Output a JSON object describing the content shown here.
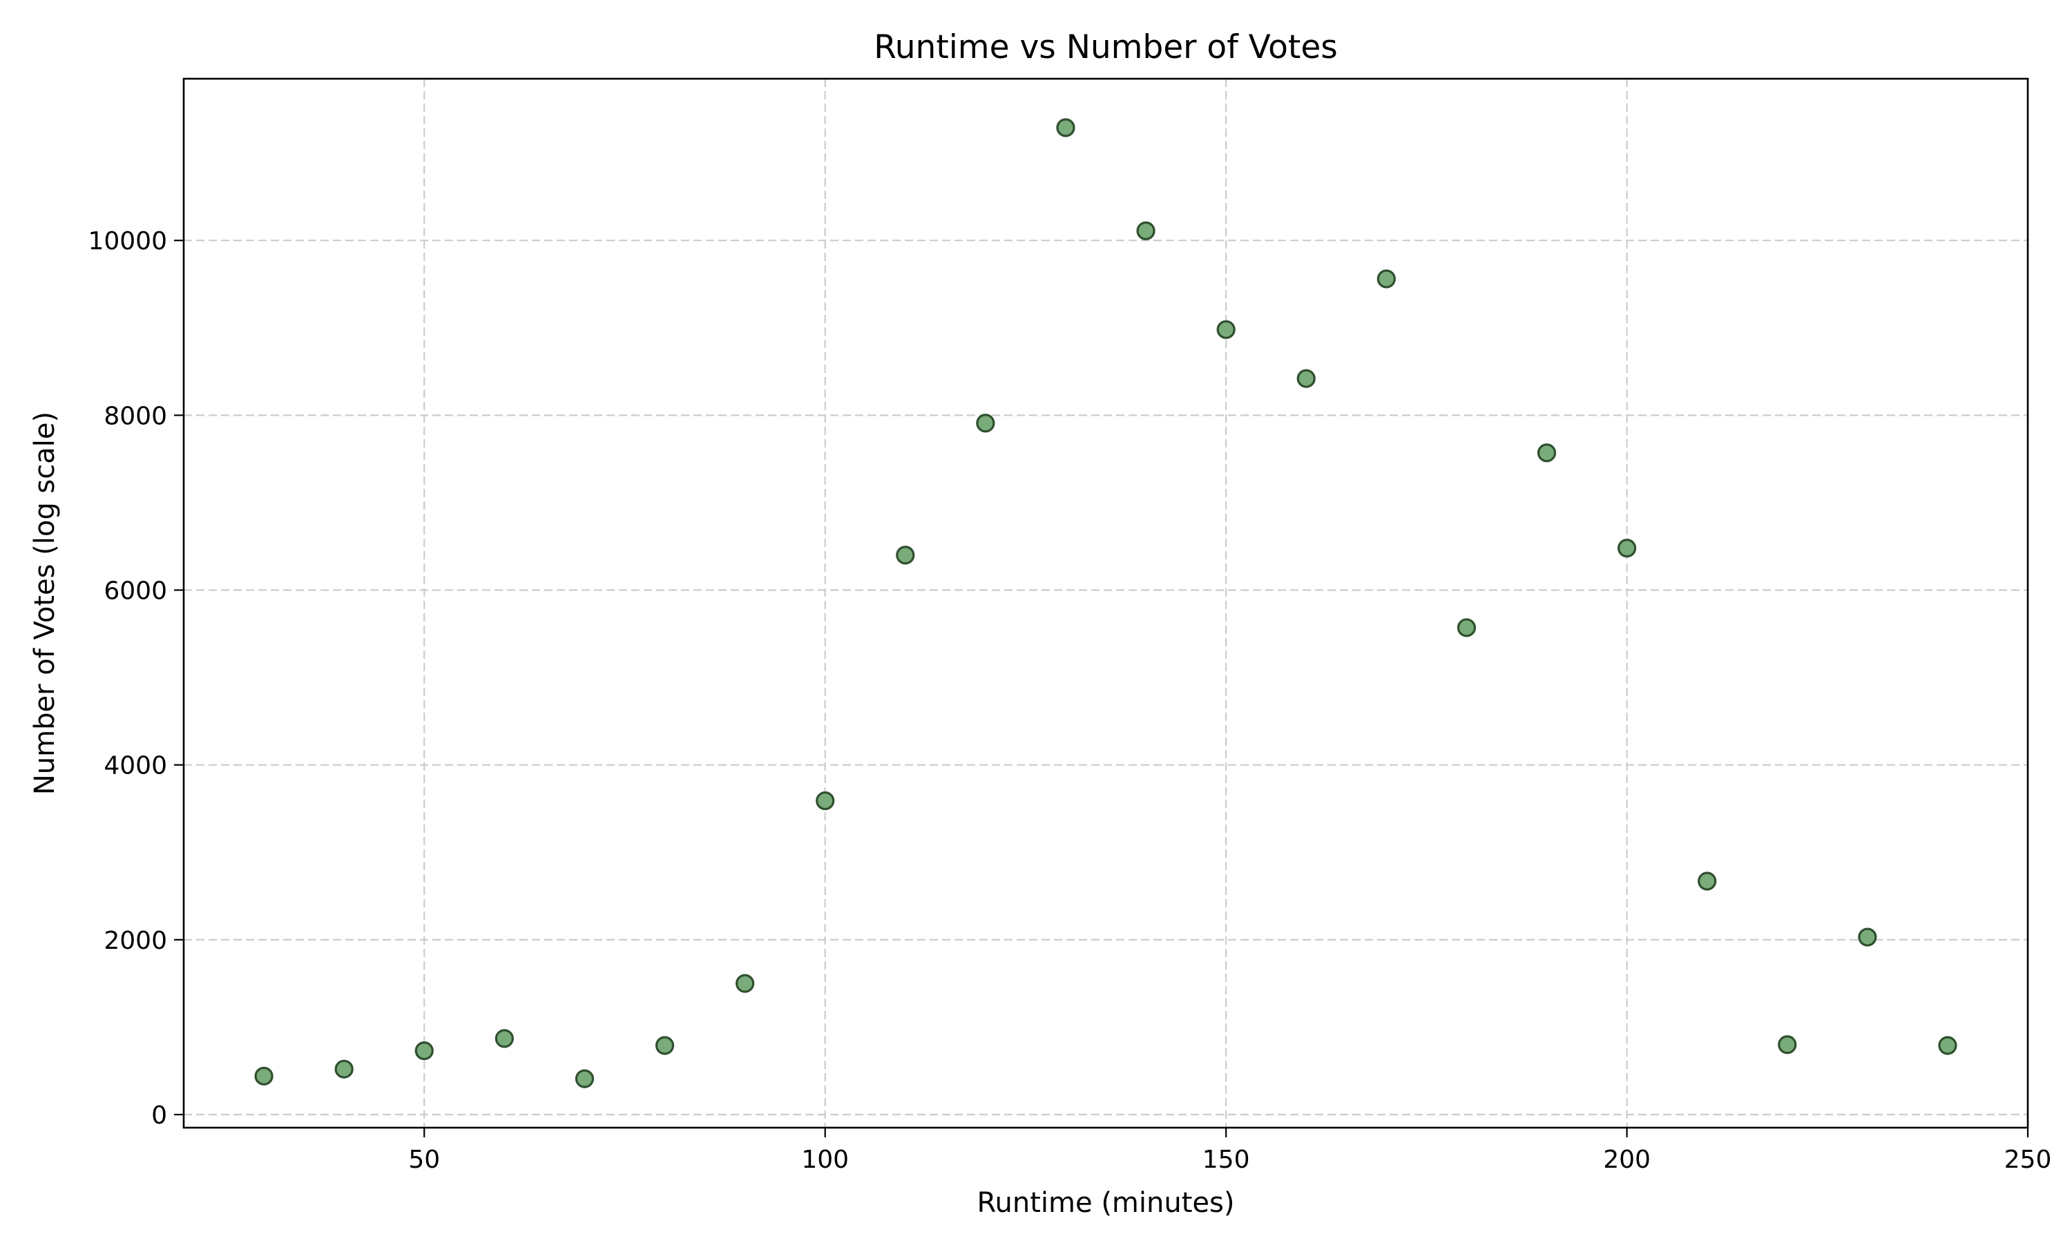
{
  "chart_data": {
    "type": "scatter",
    "title": "Runtime vs Number of Votes",
    "xlabel": "Runtime (minutes)",
    "ylabel": "Number of Votes (log scale)",
    "xlim": [
      20,
      250
    ],
    "ylim": [
      -150,
      11850
    ],
    "xticks": [
      50,
      100,
      150,
      200,
      250
    ],
    "yticks": [
      0,
      2000,
      4000,
      6000,
      8000,
      10000
    ],
    "grid": true,
    "marker_color": "#7aab7a",
    "marker_edge_color": "#2f4f2f",
    "x": [
      30,
      40,
      50,
      60,
      70,
      80,
      90,
      100,
      110,
      120,
      130,
      140,
      150,
      160,
      170,
      180,
      190,
      200,
      210,
      220,
      230,
      240
    ],
    "y": [
      440,
      520,
      730,
      870,
      410,
      790,
      1500,
      3590,
      6400,
      7910,
      11290,
      10110,
      8980,
      8420,
      9560,
      5570,
      7570,
      6480,
      2670,
      800,
      2030,
      790
    ]
  }
}
